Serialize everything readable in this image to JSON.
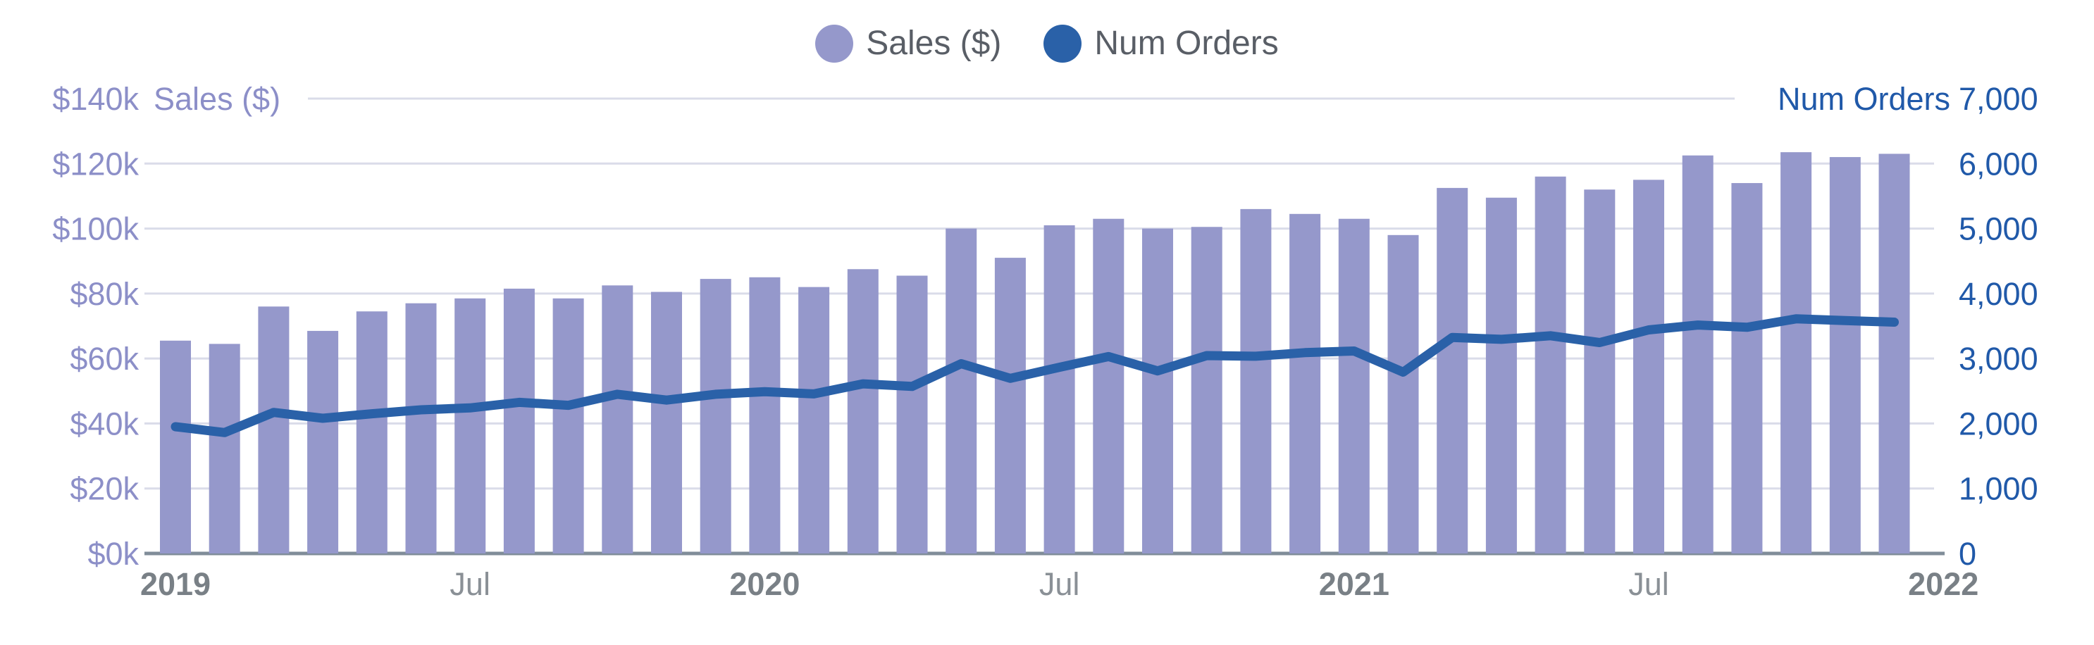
{
  "legend": {
    "items": [
      {
        "label": "Sales ($)",
        "color": "#9598CB"
      },
      {
        "label": "Num Orders",
        "color": "#2A61A8"
      }
    ]
  },
  "colors": {
    "bar": "#9598CB",
    "line": "#2A61A8",
    "left_axis_text": "#8C8FC8",
    "right_axis_text": "#2059A9",
    "year_label": "#798086",
    "jul_label": "#8A9096",
    "legend_text": "#595E66",
    "gridline": "#DADCE9",
    "baseline": "#808D99"
  },
  "chart_data": {
    "type": "bar",
    "title": "",
    "categories": [
      "2019-01",
      "2019-02",
      "2019-03",
      "2019-04",
      "2019-05",
      "2019-06",
      "2019-07",
      "2019-08",
      "2019-09",
      "2019-10",
      "2019-11",
      "2019-12",
      "2020-01",
      "2020-02",
      "2020-03",
      "2020-04",
      "2020-05",
      "2020-06",
      "2020-07",
      "2020-08",
      "2020-09",
      "2020-10",
      "2020-11",
      "2020-12",
      "2021-01",
      "2021-02",
      "2021-03",
      "2021-04",
      "2021-05",
      "2021-06",
      "2021-07",
      "2021-08",
      "2021-09",
      "2021-10",
      "2021-11",
      "2021-12"
    ],
    "series": [
      {
        "name": "Sales ($)",
        "type": "bar",
        "axis": "left",
        "color": "#9598CB",
        "values": [
          65500,
          64500,
          76000,
          68500,
          74500,
          77000,
          78500,
          81500,
          78500,
          82500,
          80500,
          84500,
          85000,
          82000,
          87500,
          85500,
          100000,
          91000,
          101000,
          103000,
          100000,
          100500,
          106000,
          104500,
          103000,
          98000,
          112500,
          109500,
          116000,
          112000,
          115000,
          122500,
          114000,
          123500,
          122000,
          123000
        ]
      },
      {
        "name": "Num Orders",
        "type": "line",
        "axis": "right",
        "color": "#2A61A8",
        "values": [
          1950,
          1860,
          2170,
          2080,
          2150,
          2210,
          2240,
          2325,
          2280,
          2450,
          2360,
          2450,
          2490,
          2455,
          2610,
          2570,
          2920,
          2695,
          2865,
          3030,
          2810,
          3045,
          3035,
          3090,
          3115,
          2790,
          3325,
          3295,
          3350,
          3245,
          3440,
          3515,
          3480,
          3610,
          3585,
          3560
        ]
      }
    ],
    "left_axis": {
      "title": "Sales ($)",
      "min": 0,
      "max": 140000,
      "tick_values": [
        0,
        20000,
        40000,
        60000,
        80000,
        100000,
        120000,
        140000
      ],
      "tick_labels": [
        "$0k",
        "$20k",
        "$40k",
        "$60k",
        "$80k",
        "$100k",
        "$120k",
        "$140k"
      ]
    },
    "right_axis": {
      "title": "Num Orders",
      "min": 0,
      "max": 7000,
      "tick_values": [
        0,
        1000,
        2000,
        3000,
        4000,
        5000,
        6000,
        7000
      ],
      "tick_labels": [
        "0",
        "1,000",
        "2,000",
        "3,000",
        "4,000",
        "5,000",
        "6,000",
        "7,000"
      ]
    },
    "x_axis": {
      "labels": [
        {
          "text": "2019",
          "month_index": 0,
          "bold": true
        },
        {
          "text": "Jul",
          "month_index": 6,
          "bold": false
        },
        {
          "text": "2020",
          "month_index": 12,
          "bold": true
        },
        {
          "text": "Jul",
          "month_index": 18,
          "bold": false
        },
        {
          "text": "2021",
          "month_index": 24,
          "bold": true
        },
        {
          "text": "Jul",
          "month_index": 30,
          "bold": false
        },
        {
          "text": "2022",
          "month_index": 36,
          "bold": true
        }
      ]
    },
    "grid": true,
    "legend_position": "top-center"
  }
}
